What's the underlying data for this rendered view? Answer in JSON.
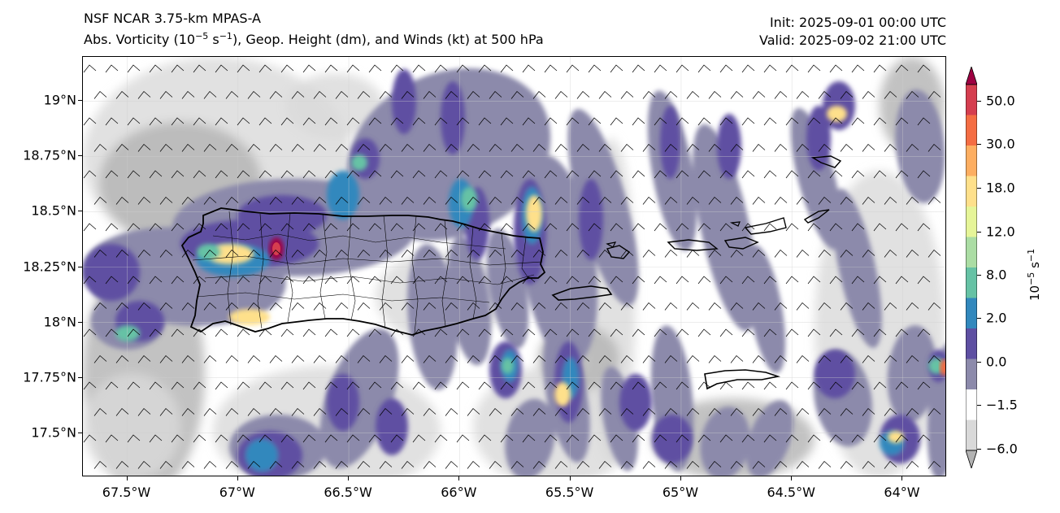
{
  "header": {
    "model": "NSF NCAR 3.75-km MPAS-A",
    "field_part1": "Abs. Vorticity (10",
    "field_exp1": "−5",
    "field_part2": " s",
    "field_exp2": "−1",
    "field_part3": "), Geop. Height (dm), and Winds (kt) at 500 hPa",
    "init": "Init: 2025-09-01 00:00 UTC",
    "valid": "Valid: 2025-09-02 21:00 UTC"
  },
  "map": {
    "lon_range": [
      -67.7,
      -63.8
    ],
    "lat_range": [
      17.3,
      19.2
    ],
    "lat_ticks": [
      "19°N",
      "18.75°N",
      "18.5°N",
      "18.25°N",
      "18°N",
      "17.75°N",
      "17.5°N"
    ],
    "lon_ticks": [
      "67.5°W",
      "67°W",
      "66.5°W",
      "66°W",
      "65.5°W",
      "65°W",
      "64.5°W",
      "64°W"
    ],
    "wind_barbs": "north-northeast"
  },
  "colorbar": {
    "unit_base": "10",
    "unit_exp1": "−5",
    "unit_mid": " s",
    "unit_exp2": "−1",
    "tick_labels": [
      "50.0",
      "30.0",
      "18.0",
      "12.0",
      "8.0",
      "2.0",
      "0.0",
      "−1.5",
      "−6.0"
    ],
    "colors": [
      "#9e0142",
      "#d53e4f",
      "#f46d43",
      "#fdae61",
      "#fee08b",
      "#e6f598",
      "#abdda4",
      "#66c2a5",
      "#3288bd",
      "#5e4fa2",
      "#8c8aab",
      "#ffffff",
      "#d9d9d9",
      "#b3b3b3"
    ]
  }
}
